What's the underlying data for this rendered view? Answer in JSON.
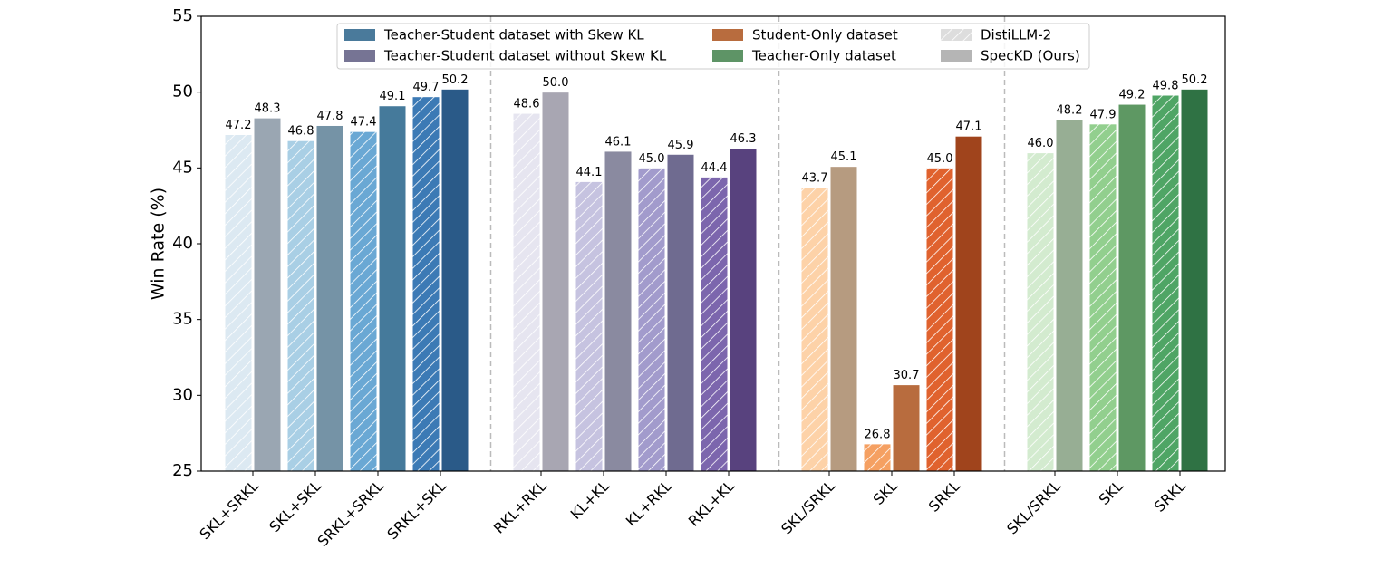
{
  "chart_data": {
    "type": "bar",
    "ylabel": "Win Rate (%)",
    "ylim": [
      25,
      55
    ],
    "yticks": [
      25,
      30,
      35,
      40,
      45,
      50,
      55
    ],
    "groups": [
      {
        "name": "Teacher-Student dataset with Skew KL",
        "color": "#4a7a9b",
        "categories": [
          "SKL+SRKL",
          "SKL+SKL",
          "SRKL+SRKL",
          "SRKL+SKL"
        ]
      },
      {
        "name": "Teacher-Student dataset without Skew KL",
        "color": "#767494",
        "categories": [
          "RKL+RKL",
          "KL+KL",
          "KL+RKL",
          "RKL+KL"
        ]
      },
      {
        "name": "Student-Only dataset",
        "color": "#b86c3e",
        "categories": [
          "SKL/SRKL",
          "SKL",
          "SRKL"
        ]
      },
      {
        "name": "Teacher-Only dataset",
        "color": "#5e9466",
        "categories": [
          "SKL/SRKL",
          "SKL",
          "SRKL"
        ]
      }
    ],
    "series": [
      {
        "name": "DistiLLM-2",
        "color": "#dddddd",
        "hatch": true,
        "values": [
          47.2,
          46.8,
          47.4,
          49.7,
          48.6,
          44.1,
          45.0,
          44.4,
          43.7,
          26.8,
          45.0,
          46.0,
          47.9,
          49.8
        ],
        "value_labels": [
          "47.2",
          "46.8",
          "47.4",
          "49.7",
          "48.6",
          "44.1",
          "45.0",
          "44.4",
          "43.7",
          "26.8",
          "45.0",
          "46.0",
          "47.9",
          "49.8"
        ],
        "colors": [
          "#dce9f2",
          "#a9cfe5",
          "#6aa8d4",
          "#3c7ab5",
          "#e6e5f0",
          "#c6c3e0",
          "#a29bcc",
          "#7c66ad",
          "#fdd2a8",
          "#f5a062",
          "#e0622e",
          "#d3ebcf",
          "#92cf8e",
          "#4fa565"
        ]
      },
      {
        "name": "SpecKD (Ours)",
        "color": "#b5b5b5",
        "hatch": false,
        "values": [
          48.3,
          47.8,
          49.1,
          50.2,
          50.0,
          46.1,
          45.9,
          46.3,
          45.1,
          30.7,
          47.1,
          48.2,
          49.2,
          50.2
        ],
        "value_labels": [
          "48.3",
          "47.8",
          "49.1",
          "50.2",
          "50.0",
          "46.1",
          "45.9",
          "46.3",
          "45.1",
          "30.7",
          "47.1",
          "48.2",
          "49.2",
          "50.2"
        ],
        "colors": [
          "#9aa6b2",
          "#7593a6",
          "#457a9b",
          "#2a5a88",
          "#a8a6b2",
          "#8a8aa0",
          "#6f6b90",
          "#58427e",
          "#b69b80",
          "#b86c3e",
          "#a0441c",
          "#97ae94",
          "#5e9863",
          "#2f7244"
        ]
      }
    ]
  }
}
